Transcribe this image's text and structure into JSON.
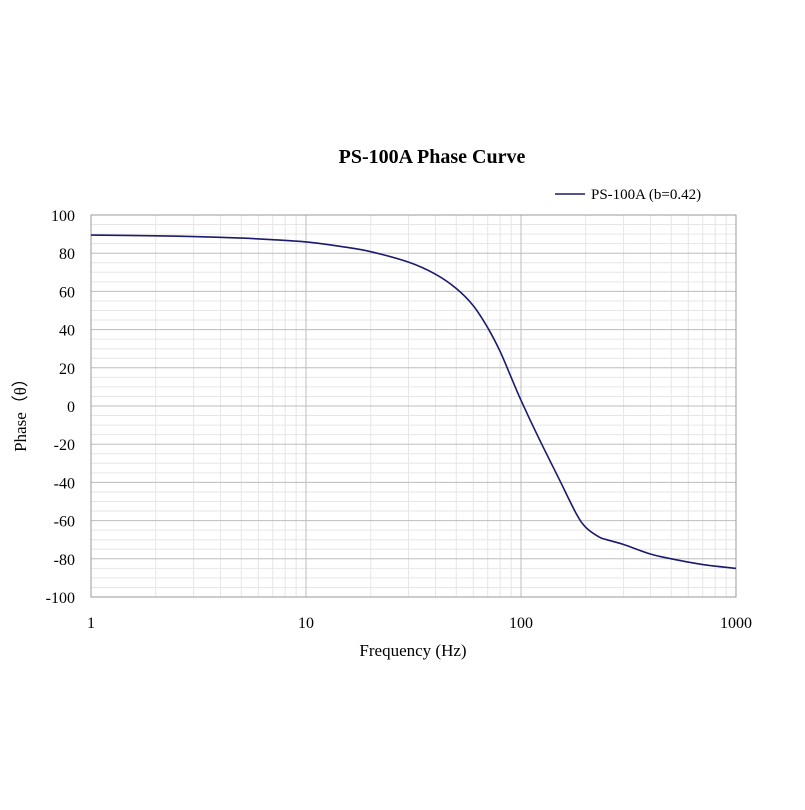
{
  "chart_data": {
    "type": "line",
    "title": "PS-100A Phase Curve",
    "xlabel": "Frequency (Hz)",
    "ylabel": "Phase（θ）",
    "xscale": "log",
    "xlim": [
      1,
      1000
    ],
    "ylim": [
      -100,
      100
    ],
    "xticks": [
      1,
      10,
      100,
      1000
    ],
    "xtick_labels": [
      "1",
      "10",
      "100",
      "1000"
    ],
    "yticks": [
      100,
      80,
      60,
      40,
      20,
      0,
      -20,
      -40,
      -60,
      -80,
      -100
    ],
    "ytick_labels": [
      "100",
      "80",
      "60",
      "40",
      "20",
      "0",
      "-20",
      "-40",
      "-60",
      "-80",
      "-100"
    ],
    "grid": true,
    "legend_position": "top-right",
    "series": [
      {
        "name": "PS-100A (b=0.42)",
        "color": "#1a1a6e",
        "x": [
          1,
          2,
          3,
          5,
          7,
          10,
          15,
          20,
          30,
          40,
          50,
          60,
          70,
          80,
          90,
          100,
          120,
          150,
          180,
          200,
          230,
          250,
          300,
          400,
          500,
          700,
          1000
        ],
        "y": [
          89.5,
          89.1,
          88.7,
          87.9,
          87.1,
          85.9,
          83.3,
          80.8,
          75.3,
          69.0,
          61.5,
          52.5,
          41.0,
          28.5,
          15.0,
          3.0,
          -16.0,
          -38.0,
          -56.0,
          -63.5,
          -68.5,
          -70.0,
          -72.5,
          -77.5,
          -80.0,
          -83.0,
          -85.0
        ]
      }
    ]
  }
}
